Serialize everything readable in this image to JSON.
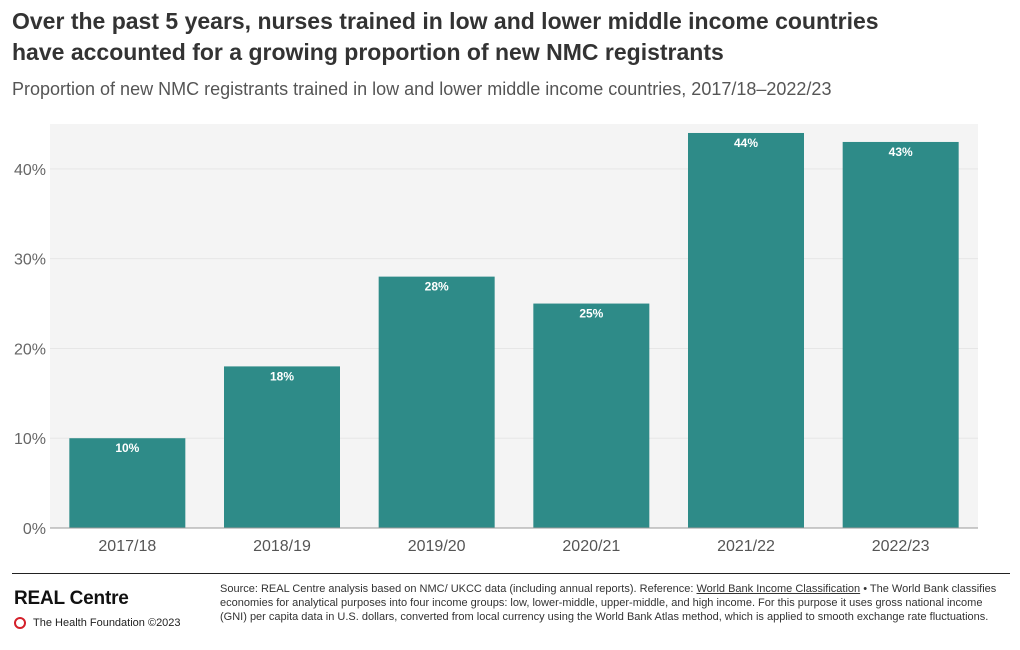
{
  "header": {
    "title_line1": "Over the past 5 years, nurses trained in low and lower middle income countries",
    "title_line2": "have accounted for a growing proportion of new NMC registrants",
    "subtitle": "Proportion of new NMC registrants trained in low and lower middle income countries, 2017/18–2022/23"
  },
  "chart_data": {
    "type": "bar",
    "categories": [
      "2017/18",
      "2018/19",
      "2019/20",
      "2020/21",
      "2021/22",
      "2022/23"
    ],
    "values": [
      10,
      18,
      28,
      25,
      44,
      43
    ],
    "data_labels": [
      "10%",
      "18%",
      "28%",
      "25%",
      "44%",
      "43%"
    ],
    "yticks": [
      0,
      10,
      20,
      30,
      40
    ],
    "ytick_labels": [
      "0%",
      "10%",
      "20%",
      "30%",
      "40%"
    ],
    "ylim": [
      0,
      45
    ],
    "grid": true,
    "bar_color": "#2e8b88",
    "plot_background": "#f4f4f4",
    "xlabel": "",
    "ylabel": ""
  },
  "footer": {
    "brand": "REAL Centre",
    "org": "The Health Foundation ©2023",
    "logo_color": "#d4202a",
    "source_pre": "Source: REAL Centre analysis based on NMC/ UKCC data (including annual reports). Reference: ",
    "source_link": "World Bank Income Classification",
    "source_post": " • The World Bank classifies economies for analytical purposes into four income groups: low, lower-middle, upper-middle, and high income. For this purpose it uses gross national income (GNI) per capita data in U.S. dollars, converted from local currency using the World Bank Atlas method, which is applied to smooth exchange rate fluctuations."
  }
}
